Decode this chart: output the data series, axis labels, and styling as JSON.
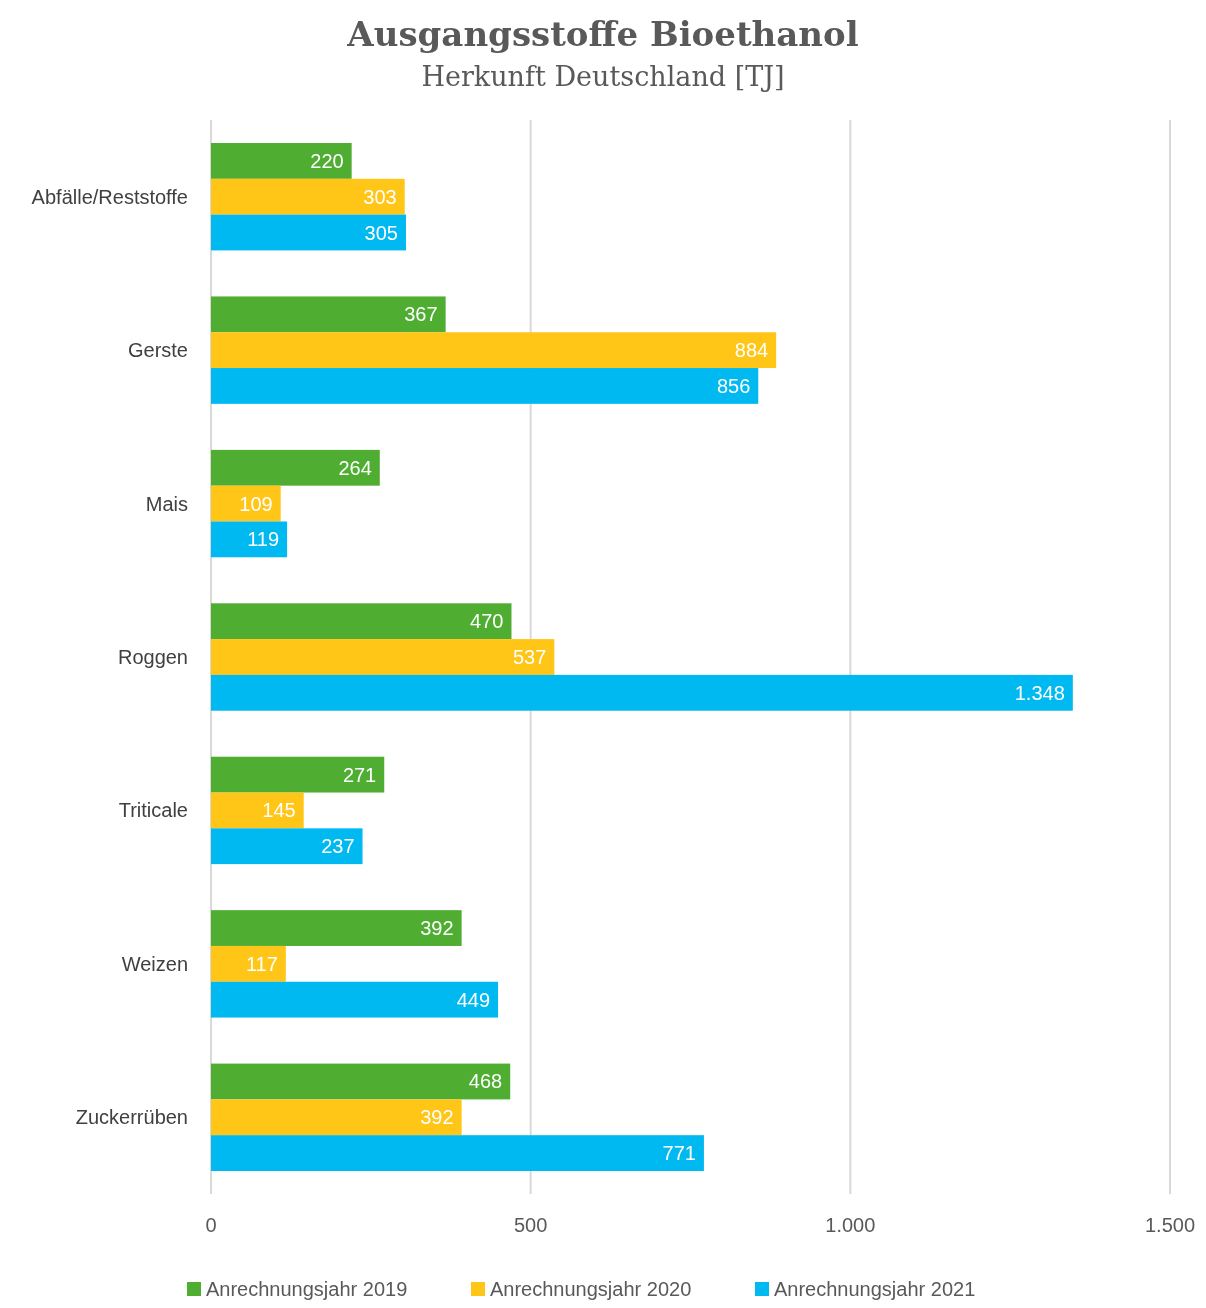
{
  "chart_data": {
    "type": "bar",
    "orientation": "horizontal",
    "title": "Ausgangsstoffe Bioethanol",
    "subtitle": "Herkunft Deutschland [TJ]",
    "categories": [
      "Abfälle/Reststoffe",
      "Gerste",
      "Mais",
      "Roggen",
      "Triticale",
      "Weizen",
      "Zuckerrüben"
    ],
    "series": [
      {
        "name": "Anrechnungsjahr 2019",
        "color": "#4fad32",
        "values": [
          220,
          367,
          264,
          470,
          271,
          392,
          468
        ],
        "value_labels": [
          "220",
          "367",
          "264",
          "470",
          "271",
          "392",
          "468"
        ]
      },
      {
        "name": "Anrechnungsjahr 2020",
        "color": "#ffc517",
        "values": [
          303,
          884,
          109,
          537,
          145,
          117,
          392
        ],
        "value_labels": [
          "303",
          "884",
          "109",
          "537",
          "145",
          "117",
          "392"
        ]
      },
      {
        "name": "Anrechnungsjahr 2021",
        "color": "#00b9f0",
        "values": [
          305,
          856,
          119,
          1348,
          237,
          449,
          771
        ],
        "value_labels": [
          "305",
          "856",
          "119",
          "1.348",
          "237",
          "449",
          "771"
        ]
      }
    ],
    "xlim": [
      0,
      1500
    ],
    "xticks": [
      0,
      500,
      {
        "value": 1000,
        "label": "1.000"
      },
      {
        "value": 1500,
        "label": "1.500"
      }
    ],
    "grid": "x",
    "legend": "bottom"
  }
}
